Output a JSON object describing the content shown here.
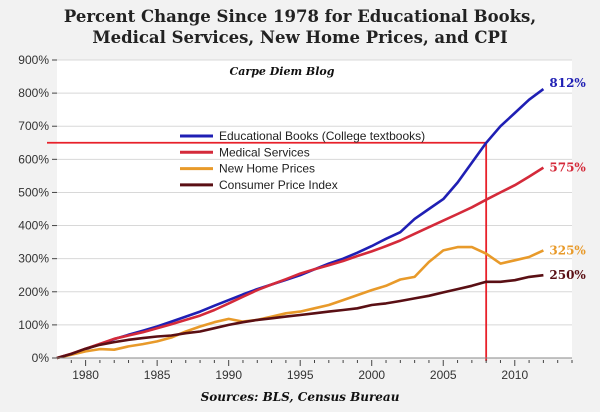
{
  "chart_data": {
    "type": "line",
    "title": "Percent Change Since 1978 for Educational Books,",
    "title_line2": "Medical Services, New Home Prices, and CPI",
    "subtitle": "Carpe Diem Blog",
    "source": "Sources: BLS, Census Bureau",
    "xlim": [
      1978,
      2014
    ],
    "ylim": [
      0,
      900
    ],
    "x_ticks": [
      "1980",
      "1985",
      "1990",
      "1995",
      "2000",
      "2005",
      "2010"
    ],
    "y_ticks": [
      "0%",
      "100%",
      "200%",
      "300%",
      "400%",
      "500%",
      "600%",
      "700%",
      "800%",
      "900%"
    ],
    "grid": true,
    "legend_position": "upper-center",
    "x": [
      1978,
      1979,
      1980,
      1981,
      1982,
      1983,
      1984,
      1985,
      1986,
      1987,
      1988,
      1989,
      1990,
      1991,
      1992,
      1993,
      1994,
      1995,
      1996,
      1997,
      1998,
      1999,
      2000,
      2001,
      2002,
      2003,
      2004,
      2005,
      2006,
      2007,
      2008,
      2009,
      2010,
      2011,
      2012
    ],
    "series": [
      {
        "name": "Educational Books  (College textbooks)",
        "color": "#1f1fb4",
        "end_label": "812%",
        "values": [
          0,
          12,
          27,
          42,
          57,
          70,
          82,
          95,
          110,
          125,
          140,
          158,
          175,
          192,
          208,
          222,
          236,
          250,
          268,
          285,
          300,
          318,
          338,
          360,
          380,
          420,
          450,
          480,
          530,
          590,
          650,
          700,
          740,
          780,
          812
        ]
      },
      {
        "name": "Medical Services",
        "color": "#d42a3a",
        "end_label": "575%",
        "values": [
          0,
          13,
          28,
          43,
          58,
          68,
          78,
          90,
          102,
          115,
          128,
          145,
          165,
          185,
          205,
          222,
          238,
          255,
          268,
          280,
          293,
          308,
          322,
          338,
          355,
          375,
          395,
          415,
          435,
          455,
          478,
          500,
          522,
          548,
          575
        ]
      },
      {
        "name": "New Home Prices",
        "color": "#e89a2a",
        "end_label": "325%",
        "values": [
          0,
          10,
          20,
          27,
          25,
          35,
          42,
          50,
          62,
          80,
          95,
          108,
          118,
          110,
          115,
          125,
          135,
          140,
          150,
          160,
          175,
          190,
          205,
          218,
          237,
          245,
          290,
          325,
          335,
          335,
          315,
          285,
          295,
          305,
          325
        ]
      },
      {
        "name": "Consumer Price Index",
        "color": "#5a0f14",
        "end_label": "250%",
        "values": [
          0,
          12,
          28,
          40,
          48,
          55,
          60,
          65,
          68,
          75,
          80,
          90,
          100,
          108,
          115,
          120,
          125,
          130,
          135,
          140,
          145,
          150,
          160,
          165,
          172,
          180,
          188,
          198,
          208,
          218,
          230,
          230,
          235,
          245,
          250
        ]
      }
    ],
    "annotations": {
      "color": "#e8202a",
      "horizontal_y": 650,
      "vertical_x": 2008
    }
  }
}
